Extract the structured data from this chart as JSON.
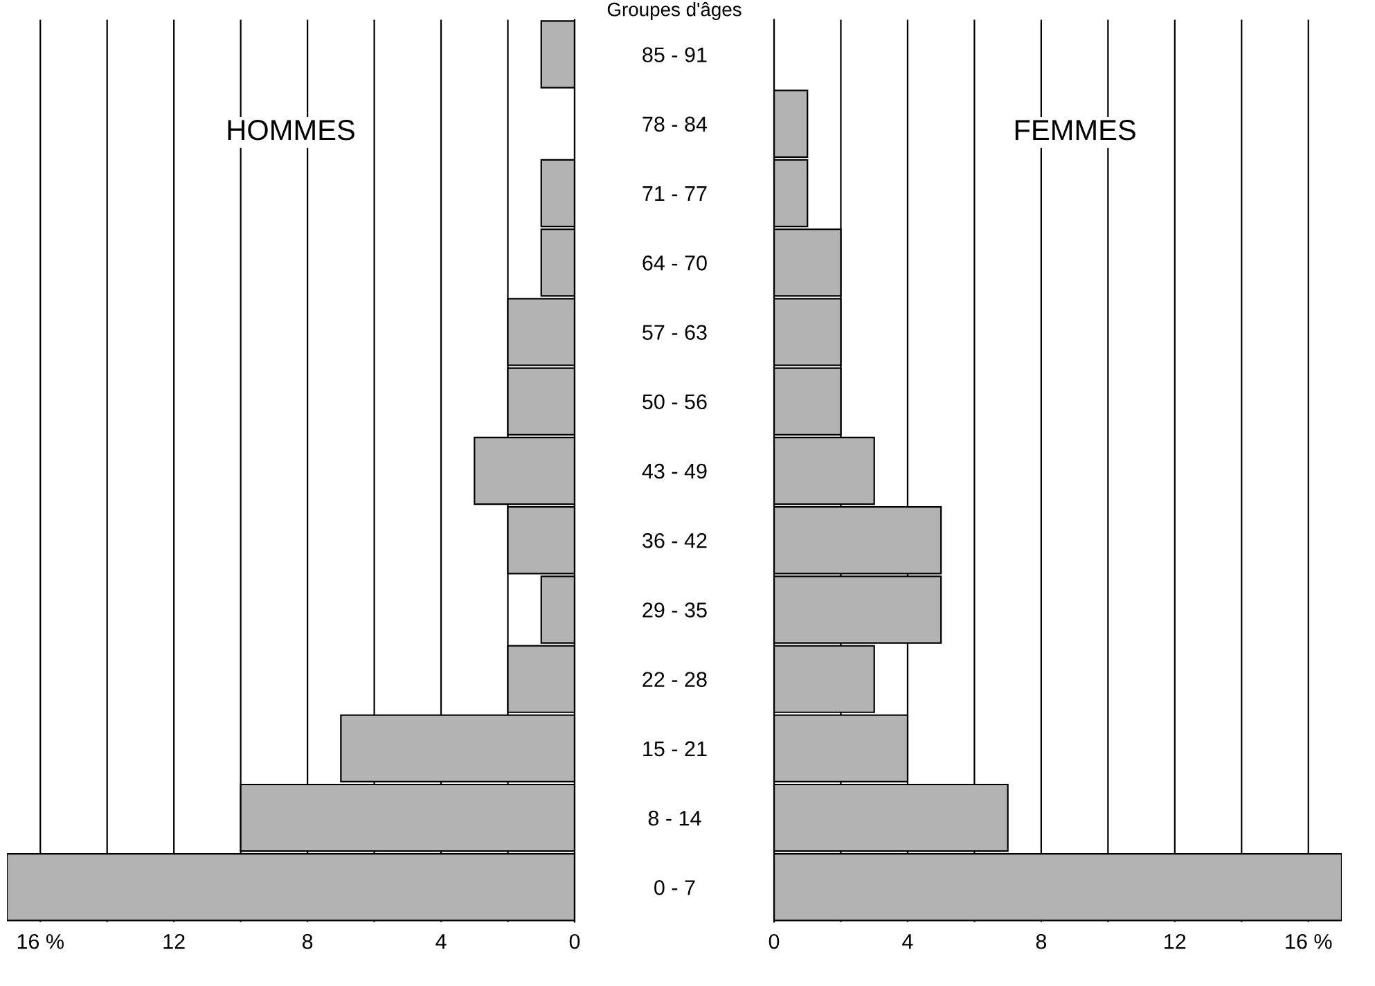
{
  "chart_data": [
    {
      "type": "bar",
      "orientation": "horizontal",
      "title": "Groupes d'âges",
      "annotations": [
        "HOMMES"
      ],
      "categories": [
        "85 - 91",
        "78 - 84",
        "71 - 77",
        "64 - 70",
        "57 - 63",
        "50 - 56",
        "43 - 49",
        "36 - 42",
        "29 - 35",
        "22 - 28",
        "15 - 21",
        "8 - 14",
        "0 - 7"
      ],
      "values": [
        1,
        0,
        1,
        1,
        2,
        2,
        3,
        2,
        1,
        2,
        7,
        10,
        17
      ],
      "color": "#b3b3b3",
      "xlim": [
        17,
        0
      ],
      "xticks": [
        {
          "value": 16,
          "label": "16 %"
        },
        {
          "value": 14,
          "label": null
        },
        12,
        {
          "value": 10,
          "label": null
        },
        8,
        {
          "value": 6,
          "label": null
        },
        4,
        {
          "value": 2,
          "label": null
        },
        0
      ],
      "grid": "x",
      "legend": false
    },
    {
      "type": "bar",
      "orientation": "horizontal",
      "annotations": [
        "FEMMES"
      ],
      "categories": [
        null,
        null,
        null,
        null,
        null,
        null,
        null,
        null,
        null,
        null,
        null,
        null,
        null
      ],
      "values": [
        0,
        1,
        1,
        2,
        2,
        2,
        3,
        5,
        5,
        3,
        4,
        7,
        17
      ],
      "color": "#b3b3b3",
      "xlim": [
        0,
        17
      ],
      "xticks": [
        0,
        {
          "value": 2,
          "label": null
        },
        4,
        {
          "value": 6,
          "label": null
        },
        8,
        {
          "value": 10,
          "label": null
        },
        12,
        {
          "value": 14,
          "label": null
        },
        {
          "value": 16,
          "label": "16 %"
        }
      ],
      "grid": "x",
      "legend": false
    }
  ]
}
